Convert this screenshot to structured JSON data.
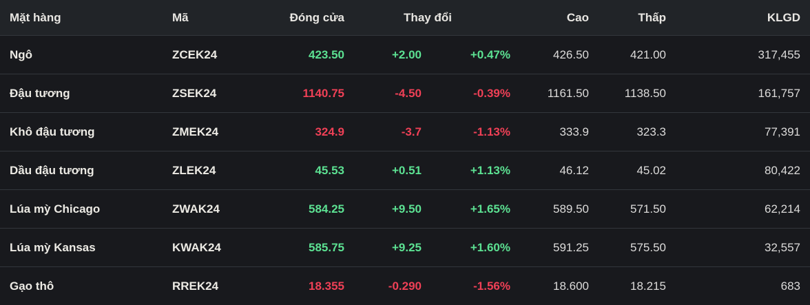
{
  "colors": {
    "up": "#5ce192",
    "down": "#ef4056",
    "header_bg": "#212428",
    "row_bg": "#18191d",
    "separator": "#33363c"
  },
  "table": {
    "columns": {
      "item": "Mặt hàng",
      "code": "Mã",
      "close": "Đóng cửa",
      "change": "Thay đổi",
      "high": "Cao",
      "low": "Thấp",
      "volume": "KLGD"
    },
    "rows": [
      {
        "name": "Ngô",
        "code": "ZCEK24",
        "close": "423.50",
        "change": "+2.00",
        "change_pct": "+0.47%",
        "high": "426.50",
        "low": "421.00",
        "volume": "317,455",
        "direction": "up"
      },
      {
        "name": "Đậu tương",
        "code": "ZSEK24",
        "close": "1140.75",
        "change": "-4.50",
        "change_pct": "-0.39%",
        "high": "1161.50",
        "low": "1138.50",
        "volume": "161,757",
        "direction": "down"
      },
      {
        "name": "Khô đậu tương",
        "code": "ZMEK24",
        "close": "324.9",
        "change": "-3.7",
        "change_pct": "-1.13%",
        "high": "333.9",
        "low": "323.3",
        "volume": "77,391",
        "direction": "down"
      },
      {
        "name": "Dầu đậu tương",
        "code": "ZLEK24",
        "close": "45.53",
        "change": "+0.51",
        "change_pct": "+1.13%",
        "high": "46.12",
        "low": "45.02",
        "volume": "80,422",
        "direction": "up"
      },
      {
        "name": "Lúa mỳ Chicago",
        "code": "ZWAK24",
        "close": "584.25",
        "change": "+9.50",
        "change_pct": "+1.65%",
        "high": "589.50",
        "low": "571.50",
        "volume": "62,214",
        "direction": "up"
      },
      {
        "name": "Lúa mỳ Kansas",
        "code": "KWAK24",
        "close": "585.75",
        "change": "+9.25",
        "change_pct": "+1.60%",
        "high": "591.25",
        "low": "575.50",
        "volume": "32,557",
        "direction": "up"
      },
      {
        "name": "Gạo thô",
        "code": "RREK24",
        "close": "18.355",
        "change": "-0.290",
        "change_pct": "-1.56%",
        "high": "18.600",
        "low": "18.215",
        "volume": "683",
        "direction": "down"
      }
    ]
  }
}
